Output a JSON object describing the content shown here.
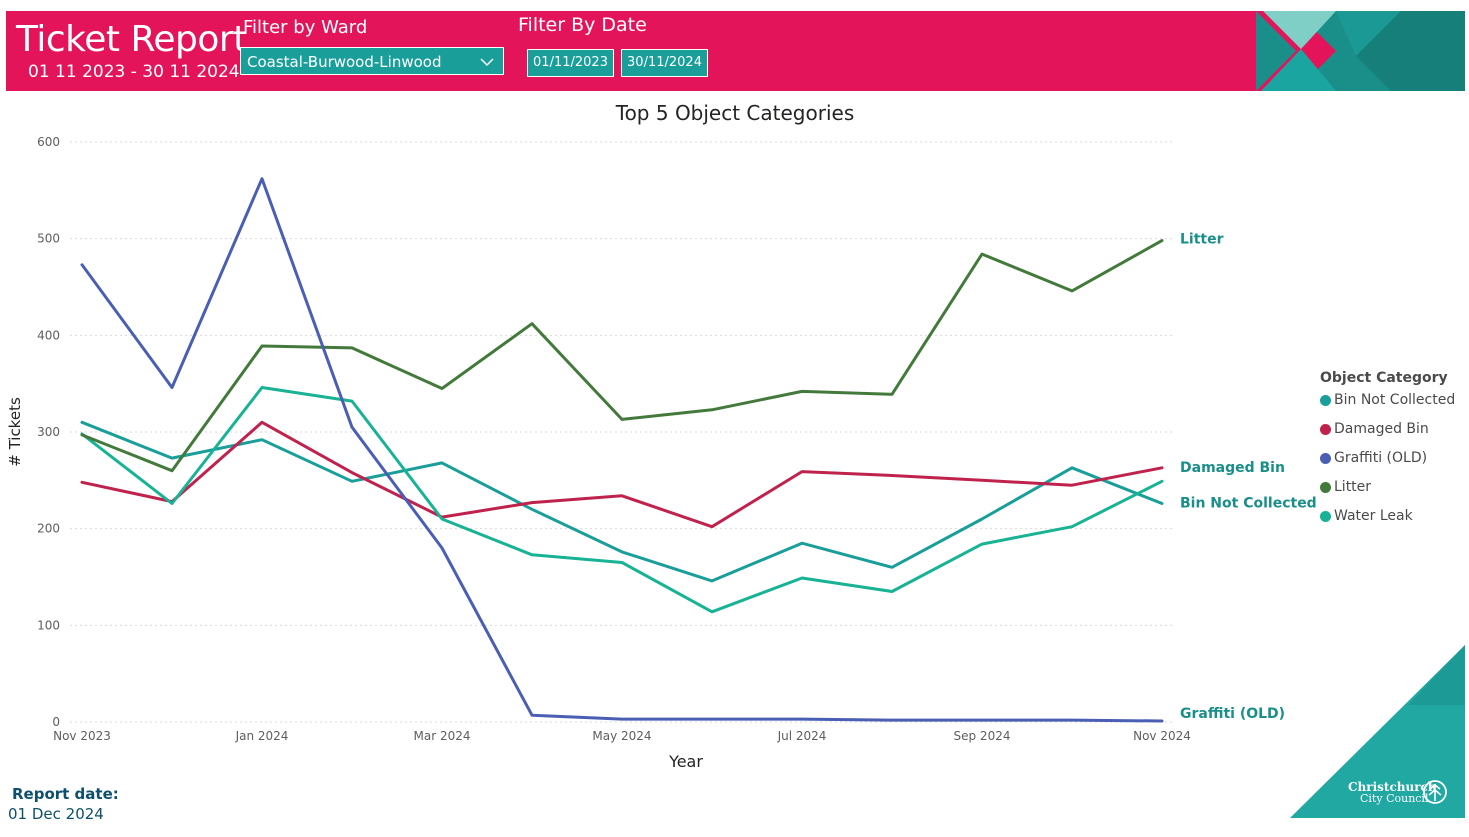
{
  "header": {
    "title": "Ticket Report",
    "date_range": "01 11 2023 - 30 11 2024",
    "ward_filter_label": "Filter by Ward",
    "ward_selected": "Coastal-Burwood-Linwood",
    "date_filter_label": "Filter By Date",
    "date_start": "01/11/2023",
    "date_end": "30/11/2024",
    "color": "#e4145a"
  },
  "chart_data": {
    "type": "line",
    "title": "Top 5 Object Categories",
    "xlabel": "Year",
    "ylabel": "# Tickets",
    "ylim": [
      0,
      600
    ],
    "yticks": [
      0,
      100,
      200,
      300,
      400,
      500,
      600
    ],
    "grid": true,
    "x": [
      "Nov 2023",
      "Dec 2023",
      "Jan 2024",
      "Feb 2024",
      "Mar 2024",
      "Apr 2024",
      "May 2024",
      "Jun 2024",
      "Jul 2024",
      "Aug 2024",
      "Sep 2024",
      "Oct 2024",
      "Nov 2024"
    ],
    "xtick_labels": [
      "Nov 2023",
      "",
      "Jan 2024",
      "",
      "Mar 2024",
      "",
      "May 2024",
      "",
      "Jul 2024",
      "",
      "Sep 2024",
      "",
      "Nov 2024"
    ],
    "legend_title": "Object Category",
    "legend_position": "right",
    "series": [
      {
        "name": "Bin Not Collected",
        "color": "#1a9e9a",
        "end_label": "Bin Not Collected",
        "values": [
          310,
          273,
          292,
          249,
          268,
          220,
          176,
          146,
          185,
          160,
          210,
          263,
          226
        ]
      },
      {
        "name": "Damaged Bin",
        "color": "#c0224e",
        "end_label": "Damaged Bin",
        "values": [
          248,
          228,
          310,
          258,
          212,
          227,
          234,
          202,
          259,
          255,
          250,
          245,
          263
        ]
      },
      {
        "name": "Graffiti (OLD)",
        "color": "#4a5fb4",
        "end_label": "Graffiti (OLD)",
        "values": [
          473,
          346,
          562,
          305,
          180,
          7,
          3,
          3,
          3,
          2,
          2,
          2,
          1
        ]
      },
      {
        "name": "Litter",
        "color": "#437a3c",
        "end_label": "Litter",
        "values": [
          297,
          260,
          389,
          387,
          345,
          412,
          313,
          323,
          342,
          339,
          484,
          446,
          498
        ]
      },
      {
        "name": "Water Leak",
        "color": "#18b394",
        "end_label": "",
        "values": [
          298,
          226,
          346,
          332,
          210,
          173,
          165,
          114,
          149,
          135,
          184,
          202,
          249
        ]
      }
    ]
  },
  "footer": {
    "report_date_label": "Report date:",
    "report_date_value": "01 Dec 2024",
    "logo_line1": "Christchurch",
    "logo_line2": "City Council"
  }
}
